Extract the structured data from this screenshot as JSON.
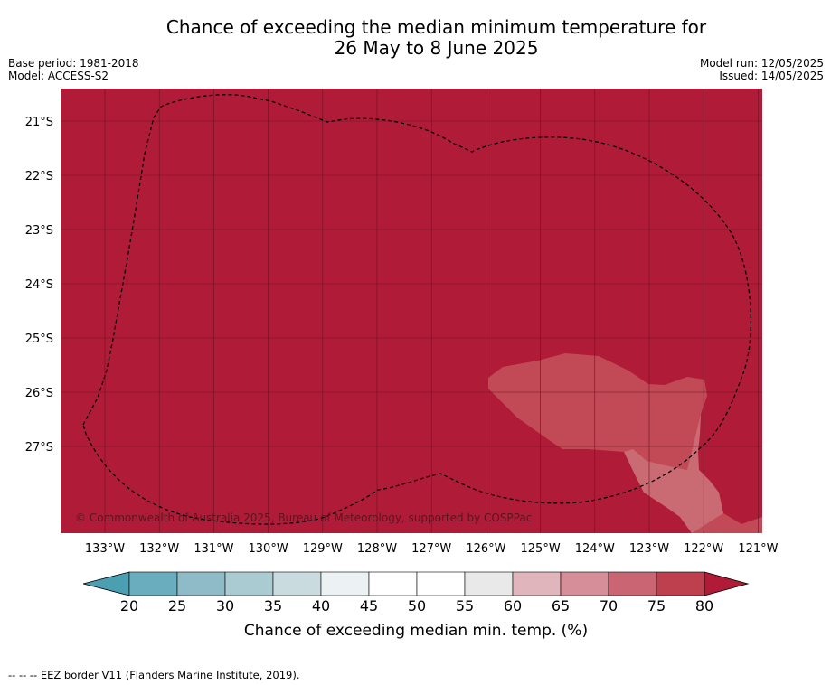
{
  "title_line1": "Chance of exceeding the median minimum temperature for",
  "title_line2": "26 May to 8 June 2025",
  "base_period": "Base period: 1981-2018",
  "model": "Model: ACCESS-S2",
  "model_run": "Model run: 12/05/2025",
  "issued": "Issued: 14/05/2025",
  "copyright": "© Commonwealth of Australia 2025, Bureau of Meteorology, supported by COSPPac",
  "footnote": "-- -- -- EEZ border V11 (Flanders Marine Institute, 2019).",
  "colorbar_label": "Chance of exceeding median min. temp. (%)",
  "colorbar_ticks": [
    "20",
    "25",
    "30",
    "35",
    "40",
    "45",
    "50",
    "55",
    "60",
    "65",
    "70",
    "75",
    "80"
  ],
  "colorbar_colors": [
    "#6aadbf",
    "#8fbac7",
    "#aacbd1",
    "#cadbdf",
    "#ecf2f4",
    "#ffffff",
    "#ffffff",
    "#e9e9e9",
    "#e0b5bc",
    "#d68e98",
    "#ca6673",
    "#be404f"
  ],
  "colorbar_under_color": "#4a9fb2",
  "colorbar_over_color": "#b01c38",
  "lon_labels": [
    "133°W",
    "132°W",
    "131°W",
    "130°W",
    "129°W",
    "128°W",
    "127°W",
    "126°W",
    "125°W",
    "124°W",
    "123°W",
    "122°W",
    "121°W"
  ],
  "lat_labels": [
    "21°S",
    "22°S",
    "23°S",
    "24°S",
    "25°S",
    "26°S",
    "27°S"
  ],
  "map_colors": {
    "dominant": "#b01c38",
    "patch": "#c24a56",
    "patch_light": "#d2858d",
    "grid": "#6e1022"
  }
}
